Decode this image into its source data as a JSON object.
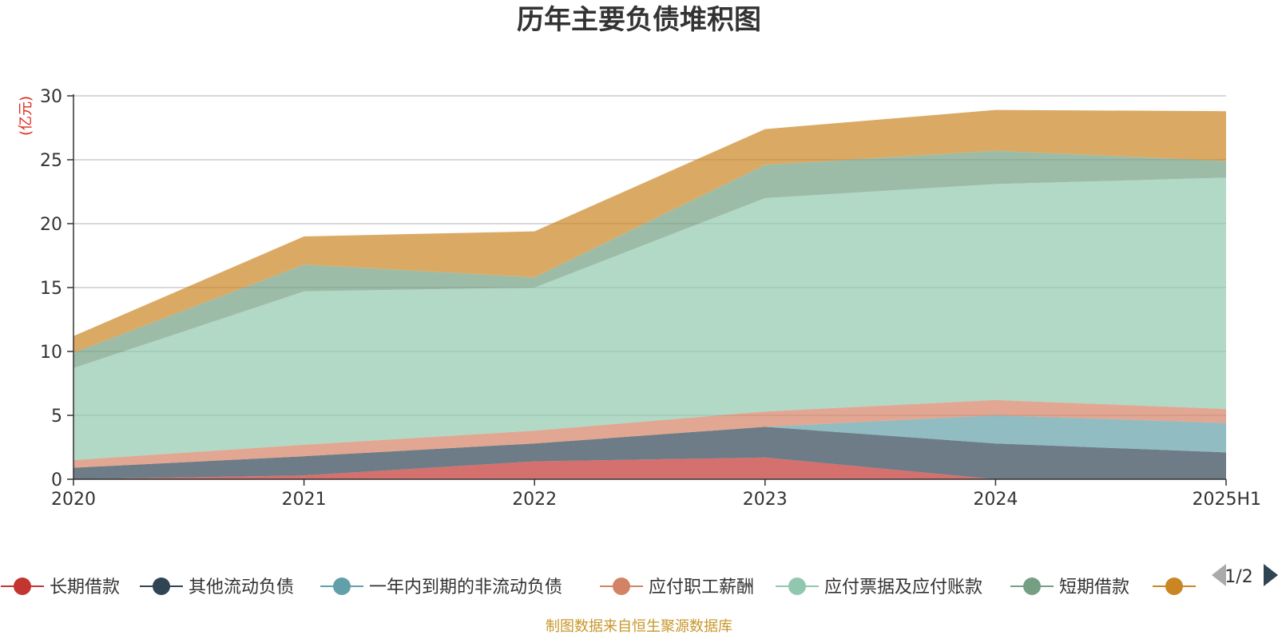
{
  "chart_data": {
    "type": "area",
    "stacked": true,
    "title": "历年主要负债堆积图",
    "ylabel": "(亿元)",
    "xlabel": "",
    "categories": [
      "2020",
      "2021",
      "2022",
      "2023",
      "2024",
      "2025H1"
    ],
    "ylim": [
      0,
      30
    ],
    "yticks": [
      0,
      5,
      10,
      15,
      20,
      25,
      30
    ],
    "grid": true,
    "legend_position": "bottom",
    "series": [
      {
        "name": "长期借款",
        "color": "#c23531",
        "values": [
          0.0,
          0.3,
          1.4,
          1.7,
          0.0,
          0.0
        ]
      },
      {
        "name": "其他流动负债",
        "color": "#2f4554",
        "values": [
          0.9,
          1.5,
          1.4,
          2.4,
          2.8,
          2.1
        ]
      },
      {
        "name": "一年内到期的非流动负债",
        "color": "#61a0a8",
        "values": [
          0.0,
          0.0,
          0.0,
          0.0,
          2.2,
          2.3
        ]
      },
      {
        "name": "应付职工薪酬",
        "color": "#d48265",
        "values": [
          0.6,
          0.9,
          1.0,
          1.2,
          1.2,
          1.1
        ]
      },
      {
        "name": "应付票据及应付账款",
        "color": "#91c7ae",
        "values": [
          7.2,
          12.0,
          11.2,
          16.7,
          16.9,
          18.1
        ]
      },
      {
        "name": "短期借款",
        "color": "#749f83",
        "values": [
          1.2,
          2.1,
          0.8,
          2.6,
          2.6,
          1.3
        ]
      },
      {
        "name": "",
        "color": "#ca8622",
        "values": [
          1.3,
          2.2,
          3.6,
          2.8,
          3.2,
          3.9
        ]
      }
    ]
  },
  "legend": {
    "page": "1/2"
  },
  "footer": "制图数据来自恒生聚源数据库",
  "icons": {
    "prev": "triangle-left-icon",
    "next": "triangle-right-icon"
  }
}
